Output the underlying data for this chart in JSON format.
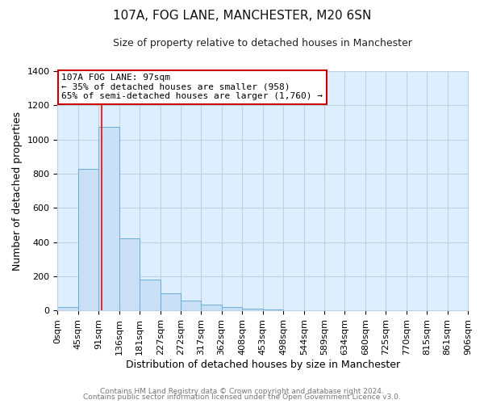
{
  "title": "107A, FOG LANE, MANCHESTER, M20 6SN",
  "subtitle": "Size of property relative to detached houses in Manchester",
  "bar_heights": [
    20,
    830,
    1075,
    420,
    180,
    100,
    58,
    35,
    20,
    12,
    5,
    0,
    0,
    0,
    0,
    0,
    0,
    0,
    0,
    0
  ],
  "bin_edges": [
    0,
    45,
    91,
    136,
    181,
    227,
    272,
    317,
    362,
    408,
    453,
    498,
    544,
    589,
    634,
    680,
    725,
    770,
    815,
    861,
    906
  ],
  "bin_labels": [
    "0sqm",
    "45sqm",
    "91sqm",
    "136sqm",
    "181sqm",
    "227sqm",
    "272sqm",
    "317sqm",
    "362sqm",
    "408sqm",
    "453sqm",
    "498sqm",
    "544sqm",
    "589sqm",
    "634sqm",
    "680sqm",
    "725sqm",
    "770sqm",
    "815sqm",
    "861sqm",
    "906sqm"
  ],
  "bar_color": "#c8dff5",
  "bar_edge_color": "#6aaed6",
  "bar_edge_width": 0.7,
  "redline_x": 97,
  "ylabel": "Number of detached properties",
  "xlabel": "Distribution of detached houses by size in Manchester",
  "ylim": [
    0,
    1400
  ],
  "yticks": [
    0,
    200,
    400,
    600,
    800,
    1000,
    1200,
    1400
  ],
  "annotation_title": "107A FOG LANE: 97sqm",
  "annotation_line1": "← 35% of detached houses are smaller (958)",
  "annotation_line2": "65% of semi-detached houses are larger (1,760) →",
  "annotation_box_facecolor": "#ffffff",
  "annotation_box_edge_color": "#cc0000",
  "plot_bg_color": "#ddeeff",
  "fig_bg_color": "#ffffff",
  "grid_color": "#c0d0e0",
  "footer_line1": "Contains HM Land Registry data © Crown copyright and database right 2024.",
  "footer_line2": "Contains public sector information licensed under the Open Government Licence v3.0.",
  "title_fontsize": 11,
  "subtitle_fontsize": 9,
  "ylabel_fontsize": 9,
  "xlabel_fontsize": 9,
  "tick_fontsize": 8,
  "annotation_fontsize": 8,
  "footer_fontsize": 6.5
}
